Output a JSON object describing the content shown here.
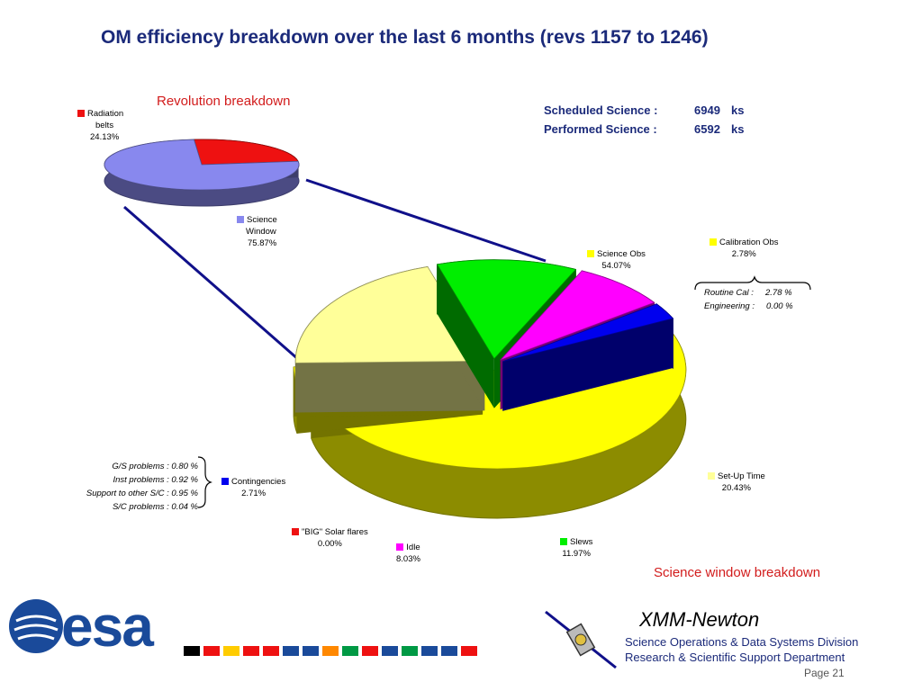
{
  "title": "OM efficiency breakdown over the last 6 months (revs 1157 to 1246)",
  "stats": {
    "scheduled_label": "Scheduled Science :",
    "scheduled_value": "6949",
    "scheduled_unit": "ks",
    "performed_label": "Performed Science :",
    "performed_value": "6592",
    "performed_unit": "ks"
  },
  "revolution": {
    "title": "Revolution breakdown",
    "slices": [
      {
        "name_line1": "Radiation",
        "name_line2": "belts",
        "pct_text": "24.13%",
        "value": 24.13,
        "color": "#ee1111"
      },
      {
        "name_line1": "Science",
        "name_line2": "Window",
        "pct_text": "75.87%",
        "value": 75.87,
        "color": "#8888ee"
      }
    ]
  },
  "science": {
    "title": "Science window breakdown",
    "slices": [
      {
        "name": "Science Obs",
        "pct_text": "54.07%",
        "value": 54.07,
        "color": "#ffff00"
      },
      {
        "name": "Calibration Obs",
        "pct_text": "2.78%",
        "value": 2.78,
        "color": "#ffff00"
      },
      {
        "name": "Set-Up Time",
        "pct_text": "20.43%",
        "value": 20.43,
        "color": "#ffff99"
      },
      {
        "name": "Slews",
        "pct_text": "11.97%",
        "value": 11.97,
        "color": "#00ee00"
      },
      {
        "name": "Idle",
        "pct_text": "8.03%",
        "value": 8.03,
        "color": "#ff00ff"
      },
      {
        "name": "\"BIG\" Solar flares",
        "pct_text": "0.00%",
        "value": 0.0,
        "color": "#ee1111"
      },
      {
        "name": "Contingencies",
        "pct_text": "2.71%",
        "value": 2.71,
        "color": "#0000ee"
      }
    ]
  },
  "calibration_notes": [
    {
      "label": "Routine Cal :",
      "value": "2.78 %"
    },
    {
      "label": "Engineering :",
      "value": "0.00 %"
    }
  ],
  "contingency_notes": [
    {
      "label": "G/S problems :",
      "value": "0.80  %"
    },
    {
      "label": "Inst problems :",
      "value": "0.92  %"
    },
    {
      "label": "Support to other S/C :",
      "value": "0.95  %"
    },
    {
      "label": "S/C problems :",
      "value": "0.04  %"
    }
  ],
  "chart_data": [
    {
      "type": "pie",
      "title": "Revolution breakdown",
      "categories": [
        "Radiation belts",
        "Science Window"
      ],
      "values": [
        24.13,
        75.87
      ]
    },
    {
      "type": "pie",
      "title": "Science window breakdown",
      "categories": [
        "Science Obs",
        "Calibration Obs",
        "Set-Up Time",
        "Slews",
        "Idle",
        "\"BIG\" Solar flares",
        "Contingencies"
      ],
      "values": [
        54.07,
        2.78,
        20.43,
        11.97,
        8.03,
        0.0,
        2.71
      ]
    }
  ],
  "footer": {
    "logo": "esa",
    "mission": "XMM-Newton",
    "line1": "Science Operations & Data Systems Division",
    "line2": "Research & Scientific Support Department",
    "page": "Page 21",
    "flag_colors": [
      "#000000",
      "#ee1111",
      "#ffcc00",
      "#ee1111",
      "#ee1111",
      "#1a4a9a",
      "#1a4a9a",
      "#ff8800",
      "#009944",
      "#ee1111",
      "#1a4a9a",
      "#009944",
      "#1a4a9a",
      "#1a4a9a",
      "#ee1111"
    ]
  }
}
